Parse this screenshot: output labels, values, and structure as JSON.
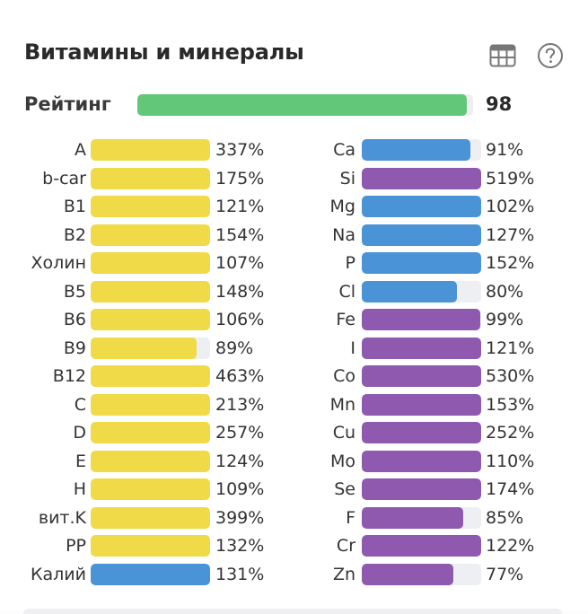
{
  "header": {
    "title": "Витамины и минералы",
    "icons": [
      "table-icon",
      "help-icon"
    ]
  },
  "rating": {
    "label": "Рейтинг",
    "value": "98",
    "fraction": 0.98,
    "color": "#63c779"
  },
  "colors": {
    "vitamin": "#f0da47",
    "mineral_blue": "#4a93d6",
    "mineral_purple": "#8e59ae",
    "track": "#eeeff2"
  },
  "chart_data": {
    "type": "bar",
    "orientation": "horizontal",
    "title": "Витамины и минералы",
    "unit": "% of daily norm",
    "bar_cap_percent": 100,
    "columns": [
      {
        "name": "left",
        "items": [
          {
            "label": "A",
            "value": 337,
            "text": "337%",
            "group": "vitamin"
          },
          {
            "label": "b-car",
            "value": 175,
            "text": "175%",
            "group": "vitamin"
          },
          {
            "label": "B1",
            "value": 121,
            "text": "121%",
            "group": "vitamin"
          },
          {
            "label": "B2",
            "value": 154,
            "text": "154%",
            "group": "vitamin"
          },
          {
            "label": "Холин",
            "value": 107,
            "text": "107%",
            "group": "vitamin"
          },
          {
            "label": "B5",
            "value": 148,
            "text": "148%",
            "group": "vitamin"
          },
          {
            "label": "B6",
            "value": 106,
            "text": "106%",
            "group": "vitamin"
          },
          {
            "label": "B9",
            "value": 89,
            "text": "89%",
            "group": "vitamin"
          },
          {
            "label": "B12",
            "value": 463,
            "text": "463%",
            "group": "vitamin"
          },
          {
            "label": "C",
            "value": 213,
            "text": "213%",
            "group": "vitamin"
          },
          {
            "label": "D",
            "value": 257,
            "text": "257%",
            "group": "vitamin"
          },
          {
            "label": "E",
            "value": 124,
            "text": "124%",
            "group": "vitamin"
          },
          {
            "label": "H",
            "value": 109,
            "text": "109%",
            "group": "vitamin"
          },
          {
            "label": "вит.K",
            "value": 399,
            "text": "399%",
            "group": "vitamin"
          },
          {
            "label": "PP",
            "value": 132,
            "text": "132%",
            "group": "vitamin"
          },
          {
            "label": "Калий",
            "value": 131,
            "text": "131%",
            "group": "mineral_blue"
          }
        ]
      },
      {
        "name": "right",
        "items": [
          {
            "label": "Ca",
            "value": 91,
            "text": "91%",
            "group": "mineral_blue"
          },
          {
            "label": "Si",
            "value": 519,
            "text": "519%",
            "group": "mineral_purple"
          },
          {
            "label": "Mg",
            "value": 102,
            "text": "102%",
            "group": "mineral_blue"
          },
          {
            "label": "Na",
            "value": 127,
            "text": "127%",
            "group": "mineral_blue"
          },
          {
            "label": "P",
            "value": 152,
            "text": "152%",
            "group": "mineral_blue"
          },
          {
            "label": "Cl",
            "value": 80,
            "text": "80%",
            "group": "mineral_blue"
          },
          {
            "label": "Fe",
            "value": 99,
            "text": "99%",
            "group": "mineral_purple"
          },
          {
            "label": "I",
            "value": 121,
            "text": "121%",
            "group": "mineral_purple"
          },
          {
            "label": "Co",
            "value": 530,
            "text": "530%",
            "group": "mineral_purple"
          },
          {
            "label": "Mn",
            "value": 153,
            "text": "153%",
            "group": "mineral_purple"
          },
          {
            "label": "Cu",
            "value": 252,
            "text": "252%",
            "group": "mineral_purple"
          },
          {
            "label": "Mo",
            "value": 110,
            "text": "110%",
            "group": "mineral_purple"
          },
          {
            "label": "Se",
            "value": 174,
            "text": "174%",
            "group": "mineral_purple"
          },
          {
            "label": "F",
            "value": 85,
            "text": "85%",
            "group": "mineral_purple"
          },
          {
            "label": "Cr",
            "value": 122,
            "text": "122%",
            "group": "mineral_purple"
          },
          {
            "label": "Zn",
            "value": 77,
            "text": "77%",
            "group": "mineral_purple"
          }
        ]
      }
    ]
  }
}
